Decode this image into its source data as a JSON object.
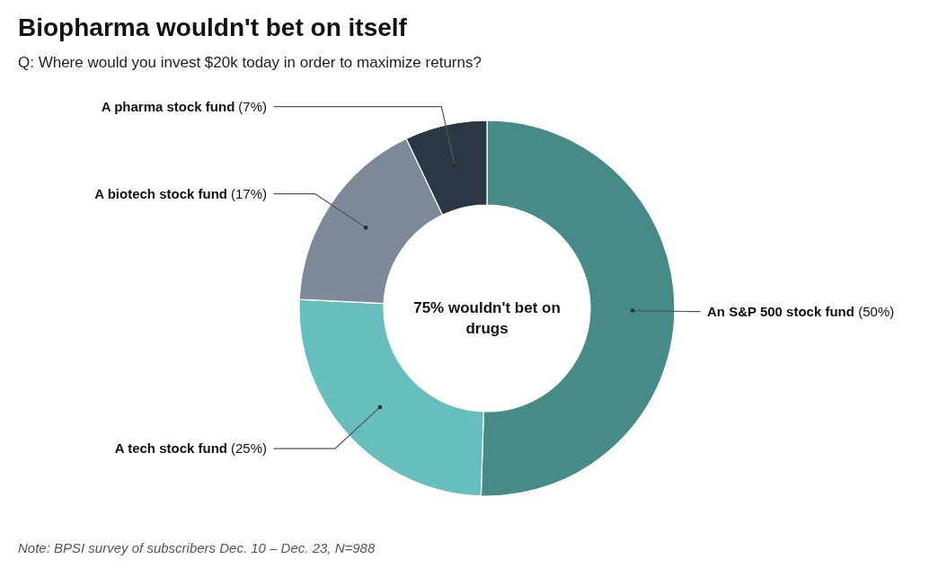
{
  "chart_data": {
    "type": "donut",
    "title": "Biopharma wouldn't bet on itself",
    "subtitle": "Q: Where would you invest $20k today in order to maximize returns?",
    "categories": [
      "An S&P 500 stock fund",
      "A tech stock fund",
      "A biotech stock fund",
      "A pharma stock fund"
    ],
    "values": [
      50,
      25,
      17,
      7
    ],
    "colors": [
      "#468b88",
      "#67bfbd",
      "#7d8999",
      "#2c3746"
    ],
    "value_labels": [
      "(50%)",
      "(25%)",
      "(17%)",
      "(7%)"
    ],
    "annotations": [
      "75% wouldn't bet on drugs",
      "Note: BPSI survey of subscribers Dec. 10 – Dec. 23, N=988"
    ]
  }
}
